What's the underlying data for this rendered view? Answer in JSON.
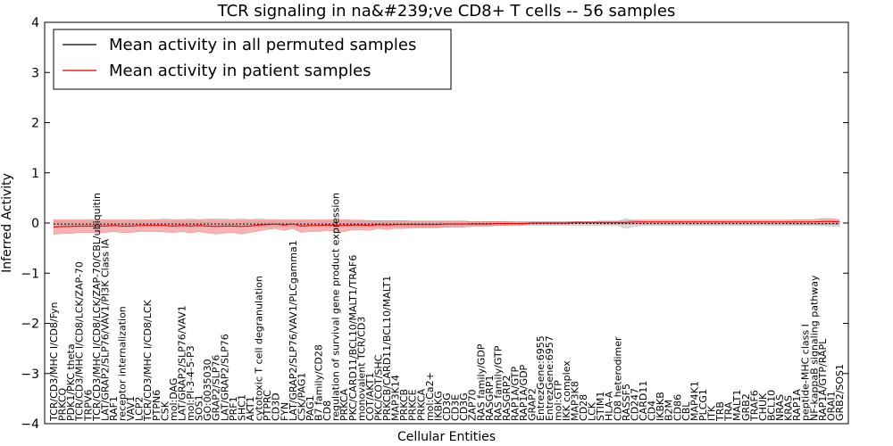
{
  "chart_data": {
    "type": "line",
    "title": "TCR signaling in na&#239;ve CD8+ T cells -- 56 samples",
    "xlabel": "Cellular Entities",
    "ylabel": "Inferred Activity",
    "ylim": [
      -4,
      4
    ],
    "yticks": [
      -4,
      -3,
      -2,
      -1,
      0,
      1,
      2,
      3,
      4
    ],
    "ytick_labels": [
      "−4",
      "−3",
      "−2",
      "−1",
      "0",
      "1",
      "2",
      "3",
      "4"
    ],
    "legend_position": "top-left",
    "categories": [
      "TCR/CD3/MHC I/CD8/Fyn",
      "PRKCQ",
      "PDK1/PKC theta",
      "TCR/CD3/MHC I/CD8/LCK/ZAP-70",
      "TRPV6",
      "TCR/CD3/MHC I/CD8/LCK/ZAP-70/CBL/ubiquitin",
      "LAT/GRAP2/SLP76/VAV1/PI3K Class IA",
      "RAF1",
      "receptor internalization",
      "VAV1",
      "LCP2",
      "TCR/CD3/MHC I/CD8/LCK",
      "PTPN6",
      "CSK",
      "mol:DAG",
      "LAT/GRAP2/SLP76/VAV1",
      "mol:PI-3-4-5-P3",
      "SOS1",
      "GO:0035030",
      "GRAP2/SLP76",
      "LAT/GRAP2/SLP76",
      "PRF1",
      "SHC1",
      "AKT1",
      "cytotoxic T cell degranulation",
      "PTPRC",
      "CD3D",
      "FYN",
      "LAT/GRAP2/SLP76/VAV1/PLCgamma1",
      "CSK/PAG1",
      "PAG1",
      "B7 family/CD28",
      "CD8",
      "regulation of survival gene product expression",
      "PRKCA",
      "PKC/CARD11/BCL10/MALT1/TRAF6",
      "monovalent TCR/CD3",
      "COT/AKT1",
      "PKC/COT/SHC",
      "PRKCB/CARD11/BCL10/MALT1",
      "MAP3K14",
      "PRKCB",
      "PRKCE",
      "PRKCA",
      "mol:Ca2+",
      "IKBKG",
      "CD3G",
      "CD3E",
      "CD3G",
      "ZAP70",
      "RAS family/GDP",
      "RASGRP1",
      "RAS family/GTP",
      "RASGRP2",
      "RAP1A/GTP",
      "RAP1A/GDP",
      "GRAP2",
      "EntrezGene:6955",
      "EntrezGene:6957",
      "mol:GTP",
      "IKK complex",
      "MAP3K8",
      "CD28",
      "LCK",
      "STIM1",
      "HLA-A",
      "CD8 heterodimer",
      "RASSF5",
      "CD247",
      "CARD11",
      "CD4",
      "IKBKB",
      "B2M",
      "CD86",
      "CBL",
      "MAP4K1",
      "PLCG1",
      "ITK",
      "TRB",
      "TRA",
      "MALT1",
      "GRB2",
      "TRAF6",
      "CHUK",
      "BCL10",
      "NRAS",
      "KRAS",
      "RAP1A",
      "peptide-MHC class I",
      "NF-kappaB signaling pathway",
      "RAP1A/GTP/RAPL",
      "ORAI1",
      "GRB2/SOS1"
    ],
    "series": [
      {
        "name": "Mean activity in all permuted samples",
        "color": "#000000",
        "band_color": "#bbbbbb",
        "values": [
          -0.02,
          -0.02,
          -0.02,
          -0.02,
          -0.02,
          -0.02,
          -0.02,
          -0.02,
          -0.02,
          -0.02,
          -0.02,
          -0.02,
          -0.02,
          -0.02,
          -0.02,
          -0.02,
          -0.02,
          -0.02,
          -0.02,
          -0.02,
          -0.02,
          -0.02,
          -0.02,
          -0.02,
          -0.02,
          -0.02,
          -0.02,
          -0.02,
          -0.02,
          -0.02,
          -0.02,
          -0.02,
          -0.02,
          -0.02,
          -0.02,
          -0.02,
          -0.02,
          -0.02,
          -0.02,
          -0.02,
          -0.02,
          -0.02,
          -0.02,
          -0.02,
          -0.02,
          -0.02,
          -0.02,
          -0.02,
          -0.02,
          -0.01,
          -0.01,
          -0.01,
          -0.01,
          -0.01,
          -0.01,
          -0.01,
          -0.01,
          -0.01,
          -0.01,
          -0.01,
          -0.01,
          -0.01,
          -0.01,
          -0.01,
          -0.01,
          -0.01,
          -0.01,
          -0.01,
          -0.01,
          -0.01,
          -0.01,
          -0.01,
          -0.01,
          -0.01,
          -0.01,
          -0.01,
          -0.01,
          -0.01,
          -0.01,
          -0.01,
          -0.01,
          -0.01,
          -0.01,
          -0.01,
          -0.01,
          -0.01,
          -0.01,
          -0.01,
          -0.01,
          -0.01,
          -0.01,
          -0.01,
          -0.01
        ],
        "band": [
          0.06,
          0.06,
          0.06,
          0.06,
          0.06,
          0.06,
          0.06,
          0.06,
          0.06,
          0.06,
          0.06,
          0.06,
          0.06,
          0.06,
          0.06,
          0.06,
          0.06,
          0.06,
          0.06,
          0.06,
          0.06,
          0.06,
          0.06,
          0.06,
          0.06,
          0.06,
          0.06,
          0.06,
          0.06,
          0.06,
          0.06,
          0.06,
          0.06,
          0.06,
          0.06,
          0.06,
          0.06,
          0.06,
          0.06,
          0.06,
          0.06,
          0.06,
          0.06,
          0.06,
          0.06,
          0.06,
          0.06,
          0.06,
          0.06,
          0.04,
          0.04,
          0.04,
          0.04,
          0.04,
          0.04,
          0.04,
          0.04,
          0.04,
          0.04,
          0.04,
          0.04,
          0.04,
          0.04,
          0.04,
          0.04,
          0.04,
          0.04,
          0.1,
          0.06,
          0.04,
          0.04,
          0.04,
          0.04,
          0.04,
          0.04,
          0.04,
          0.04,
          0.04,
          0.04,
          0.04,
          0.04,
          0.04,
          0.04,
          0.04,
          0.04,
          0.04,
          0.04,
          0.04,
          0.04,
          0.04,
          0.04,
          0.06,
          0.06
        ]
      },
      {
        "name": "Mean activity in patient samples",
        "color": "#dd0000",
        "band_color": "#f08080",
        "values": [
          -0.08,
          -0.07,
          -0.07,
          -0.06,
          -0.06,
          -0.06,
          -0.06,
          -0.05,
          -0.06,
          -0.06,
          -0.05,
          -0.05,
          -0.05,
          -0.05,
          -0.06,
          -0.05,
          -0.06,
          -0.05,
          -0.06,
          -0.07,
          -0.06,
          -0.06,
          -0.07,
          -0.06,
          -0.04,
          -0.03,
          -0.02,
          -0.04,
          -0.02,
          -0.06,
          -0.05,
          -0.05,
          -0.04,
          -0.05,
          -0.05,
          -0.04,
          -0.04,
          -0.05,
          -0.03,
          -0.04,
          -0.03,
          -0.03,
          -0.03,
          -0.03,
          -0.03,
          -0.03,
          -0.02,
          -0.02,
          -0.02,
          -0.02,
          -0.02,
          -0.02,
          -0.01,
          -0.01,
          -0.01,
          -0.01,
          0.0,
          0.0,
          0.0,
          0.0,
          0.0,
          0.01,
          0.01,
          0.01,
          0.01,
          0.01,
          0.01,
          0.01,
          0.02,
          0.02,
          0.02,
          0.02,
          0.02,
          0.02,
          0.02,
          0.02,
          0.02,
          0.02,
          0.02,
          0.02,
          0.02,
          0.02,
          0.02,
          0.02,
          0.02,
          0.02,
          0.02,
          0.02,
          0.02,
          0.02,
          0.03,
          0.03,
          0.02
        ],
        "band": [
          0.15,
          0.14,
          0.14,
          0.13,
          0.13,
          0.13,
          0.13,
          0.12,
          0.13,
          0.13,
          0.12,
          0.12,
          0.12,
          0.13,
          0.13,
          0.12,
          0.14,
          0.12,
          0.14,
          0.15,
          0.14,
          0.13,
          0.15,
          0.13,
          0.12,
          0.1,
          0.09,
          0.11,
          0.09,
          0.13,
          0.12,
          0.12,
          0.11,
          0.12,
          0.12,
          0.1,
          0.1,
          0.1,
          0.08,
          0.09,
          0.08,
          0.08,
          0.07,
          0.07,
          0.07,
          0.07,
          0.06,
          0.06,
          0.06,
          0.05,
          0.05,
          0.05,
          0.04,
          0.04,
          0.03,
          0.03,
          0.02,
          0.02,
          0.02,
          0.02,
          0.02,
          0.02,
          0.02,
          0.02,
          0.03,
          0.03,
          0.03,
          0.03,
          0.04,
          0.04,
          0.04,
          0.04,
          0.04,
          0.04,
          0.04,
          0.04,
          0.04,
          0.04,
          0.04,
          0.04,
          0.04,
          0.04,
          0.04,
          0.04,
          0.04,
          0.04,
          0.04,
          0.05,
          0.05,
          0.05,
          0.06,
          0.06,
          0.05
        ]
      }
    ]
  }
}
